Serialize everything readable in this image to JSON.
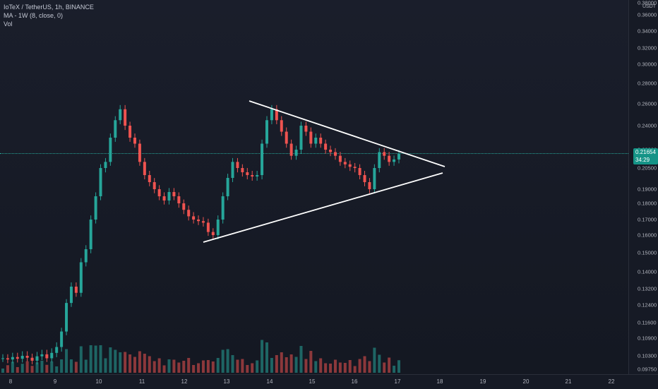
{
  "legend": {
    "title": "IoTeX / TetherUS, 1h, BINANCE",
    "ma": "MA - 1W (8, close, 0)",
    "vol": "Vol"
  },
  "currency": "USDT",
  "last_price": {
    "value": "0.21654",
    "countdown": "34:29"
  },
  "price_ticks": [
    "0.38000",
    "0.36000",
    "0.34000",
    "0.32000",
    "0.30000",
    "0.28000",
    "0.26000",
    "0.24000",
    "0.22000",
    "0.20500",
    "0.19000",
    "0.18000",
    "0.17000",
    "0.16000",
    "0.15000",
    "0.14000",
    "0.13200",
    "0.12400",
    "0.11600",
    "0.10900",
    "0.10300",
    "0.09750"
  ],
  "time_ticks": [
    "8",
    "9",
    "10",
    "11",
    "12",
    "13",
    "14",
    "15",
    "16",
    "17",
    "18",
    "19",
    "20",
    "21",
    "22"
  ],
  "colors": {
    "up": "#26a69a",
    "down": "#ef5350",
    "trendline": "#ffffff",
    "background": "#161a25"
  },
  "chart_data": {
    "type": "candlestick",
    "symbol": "IoTeX / TetherUS",
    "interval": "1h",
    "exchange": "BINANCE",
    "x_range": [
      "8",
      "22"
    ],
    "y_range": [
      0.0975,
      0.38
    ],
    "closes": [
      0.102,
      0.1015,
      0.1025,
      0.1018,
      0.103,
      0.1022,
      0.101,
      0.1028,
      0.1035,
      0.102,
      0.104,
      0.106,
      0.112,
      0.125,
      0.133,
      0.13,
      0.145,
      0.152,
      0.17,
      0.185,
      0.205,
      0.21,
      0.23,
      0.245,
      0.255,
      0.24,
      0.23,
      0.225,
      0.21,
      0.2,
      0.195,
      0.19,
      0.185,
      0.182,
      0.188,
      0.185,
      0.18,
      0.176,
      0.172,
      0.17,
      0.169,
      0.168,
      0.162,
      0.16,
      0.17,
      0.185,
      0.198,
      0.21,
      0.205,
      0.202,
      0.2,
      0.199,
      0.2,
      0.225,
      0.245,
      0.255,
      0.245,
      0.235,
      0.225,
      0.215,
      0.22,
      0.24,
      0.235,
      0.225,
      0.23,
      0.225,
      0.22,
      0.218,
      0.215,
      0.21,
      0.208,
      0.206,
      0.205,
      0.2,
      0.195,
      0.19,
      0.205,
      0.218,
      0.215,
      0.21,
      0.212,
      0.2165
    ],
    "trendlines": [
      {
        "from": [
          "12.5",
          0.157
        ],
        "to": [
          "18.1",
          0.2045
        ]
      },
      {
        "from": [
          "13.5",
          0.262
        ],
        "to": [
          "18.1",
          0.2075
        ]
      }
    ]
  }
}
